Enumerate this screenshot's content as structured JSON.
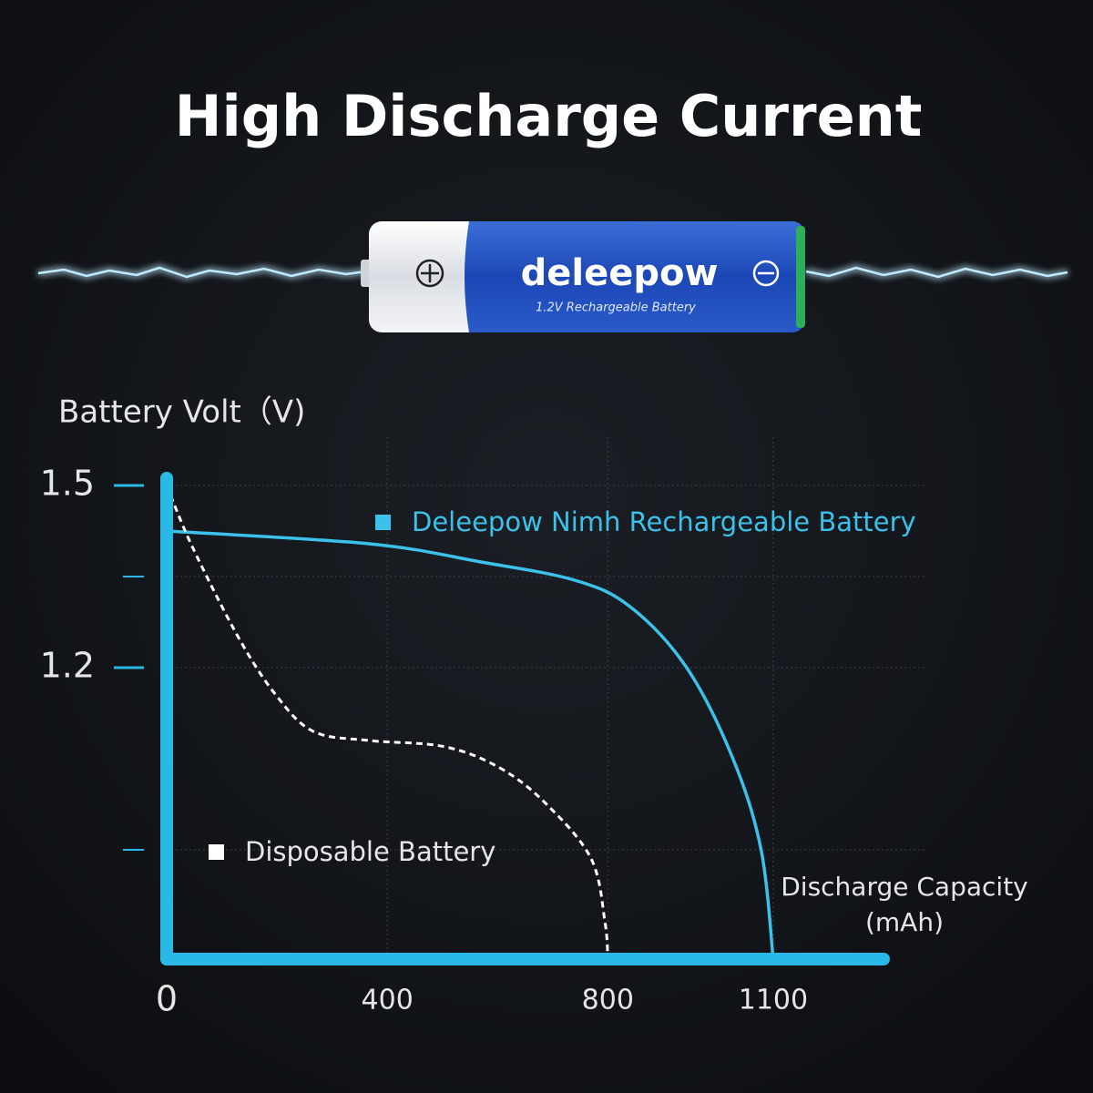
{
  "title": "High Discharge Current",
  "battery": {
    "brand": "deleepow",
    "label": "1.2V Rechargeable Battery"
  },
  "chart_data": {
    "type": "line",
    "ylabel": "Battery Volt（V)",
    "xlabel": [
      "Discharge Capacity",
      "(mAh)"
    ],
    "xlim": [
      0,
      1300
    ],
    "xticks": [
      0,
      400,
      800,
      1100
    ],
    "ylim": [
      0.72,
      1.5
    ],
    "yticks": [
      1.5,
      1.2
    ],
    "yminorticks": [
      1.35,
      0.9
    ],
    "grid": true,
    "axis_color": "#2ab8e6",
    "series": [
      {
        "name": "Deleepow Nimh Rechargeable Battery",
        "color": "#3bc1ea",
        "style": "solid",
        "x": [
          0,
          367,
          570,
          740,
          841,
          943,
          1027,
          1078,
          1100
        ],
        "values": [
          1.425,
          1.404,
          1.374,
          1.344,
          1.3,
          1.2,
          1.05,
          0.9,
          0.72
        ]
      },
      {
        "name": "Disposable Battery",
        "color": "#ffffff",
        "style": "dashed",
        "x": [
          0,
          46,
          130,
          198,
          266,
          367,
          503,
          604,
          689,
          770,
          795,
          800
        ],
        "values": [
          1.5,
          1.4,
          1.25,
          1.155,
          1.095,
          1.08,
          1.07,
          1.035,
          0.975,
          0.885,
          0.78,
          0.72
        ]
      }
    ]
  }
}
